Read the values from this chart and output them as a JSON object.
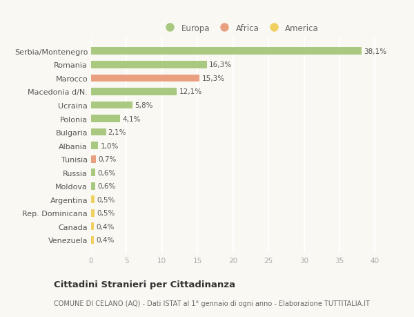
{
  "categories": [
    "Serbia/Montenegro",
    "Romania",
    "Marocco",
    "Macedonia d/N.",
    "Ucraina",
    "Polonia",
    "Bulgaria",
    "Albania",
    "Tunisia",
    "Russia",
    "Moldova",
    "Argentina",
    "Rep. Dominicana",
    "Canada",
    "Venezuela"
  ],
  "values": [
    38.1,
    16.3,
    15.3,
    12.1,
    5.8,
    4.1,
    2.1,
    1.0,
    0.7,
    0.6,
    0.6,
    0.5,
    0.5,
    0.4,
    0.4
  ],
  "labels": [
    "38,1%",
    "16,3%",
    "15,3%",
    "12,1%",
    "5,8%",
    "4,1%",
    "2,1%",
    "1,0%",
    "0,7%",
    "0,6%",
    "0,6%",
    "0,5%",
    "0,5%",
    "0,4%",
    "0,4%"
  ],
  "continent": [
    "Europa",
    "Europa",
    "Africa",
    "Europa",
    "Europa",
    "Europa",
    "Europa",
    "Europa",
    "Africa",
    "Europa",
    "Europa",
    "America",
    "America",
    "America",
    "America"
  ],
  "colors": {
    "Europa": "#a8c97f",
    "Africa": "#e8a080",
    "America": "#f0d060"
  },
  "background_color": "#faf8f2",
  "grid_color": "#ffffff",
  "title": "Cittadini Stranieri per Cittadinanza",
  "subtitle": "COMUNE DI CELANO (AQ) - Dati ISTAT al 1° gennaio di ogni anno - Elaborazione TUTTITALIA.IT",
  "legend_labels": [
    "Europa",
    "Africa",
    "America"
  ],
  "xlim": [
    0,
    42
  ],
  "xticks": [
    0,
    5,
    10,
    15,
    20,
    25,
    30,
    35,
    40
  ],
  "bar_height": 0.55,
  "label_fontsize": 7.5,
  "ytick_fontsize": 8,
  "xtick_fontsize": 7.5
}
